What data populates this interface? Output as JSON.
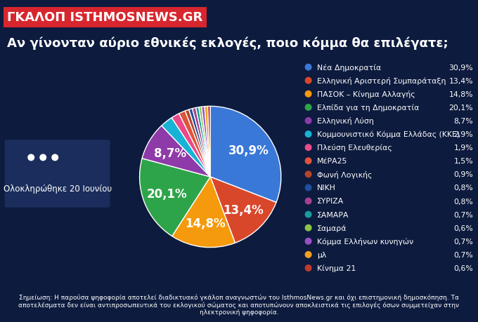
{
  "chart_data": {
    "type": "pie",
    "subtitle": "ΓΚΑΛΟΠ ISTHMOSNEWS.GR",
    "title": "Αν γίνονταν αύριο εθνικές εκλογές, ποιο κόμμα θα επιλέγατε;",
    "categories": [
      "Νέα Δημοκρατία",
      "Ελληνική Αριστερή Συμπαράταξη",
      "ΠΑΣΟΚ – Κίνημα Αλλαγής",
      "Ελπίδα για τη Δημοκρατία",
      "Ελληνική Λύση",
      "Κομμουνιστικό Κόμμα Ελλάδας (ΚΚΕ)",
      "Πλεύση Ελευθερίας",
      "ΜέΡΑ25",
      "Φωνή Λογικής",
      "ΝΙΚΗ",
      "ΣΥΡΙΖΑ",
      "ΣΑΜΑΡΑ",
      "Σαμαρά",
      "Κόμμα Ελλήνων κυνηγών",
      "μλ",
      "Κίνημα 21"
    ],
    "values": [
      30.9,
      13.4,
      14.8,
      20.1,
      8.7,
      2.9,
      1.9,
      1.5,
      0.9,
      0.8,
      0.8,
      0.7,
      0.6,
      0.7,
      0.7,
      0.6
    ],
    "value_labels": [
      "30,9%",
      "13,4%",
      "14,8%",
      "20,1%",
      "8,7%",
      "2,9%",
      "1,9%",
      "1,5%",
      "0,9%",
      "0,8%",
      "0,8%",
      "0,7%",
      "0,6%",
      "0,7%",
      "0,7%",
      "0,6%"
    ],
    "colors": [
      "#3a78d8",
      "#d9472b",
      "#f59a0c",
      "#2ea44a",
      "#8e3aa8",
      "#17b3d6",
      "#e84a8a",
      "#e0533d",
      "#b5452a",
      "#1f4fa0",
      "#a8408f",
      "#1a9c9c",
      "#8bc34a",
      "#9c4fc4",
      "#f0a020",
      "#c0392b"
    ],
    "data_labels": true,
    "annotations": [
      "Ολοκληρώθηκε 20 Ιουνίου",
      "Σημείωση: Η παρούσα ψηφοφορία αποτελεί διαδικτυακό γκάλοπ αναγνωστών του IsthmosNews.gr και όχι επιστημονική δημοσκόπηση. Τα αποτελέσματα δεν είναι αντιπροσωπευτικά του εκλογικού σώματος και αποτυπώνουν αποκλειστικά τις επιλογές όσων συμμετείχαν στην ηλεκτρονική ψηφοφορία."
    ]
  }
}
